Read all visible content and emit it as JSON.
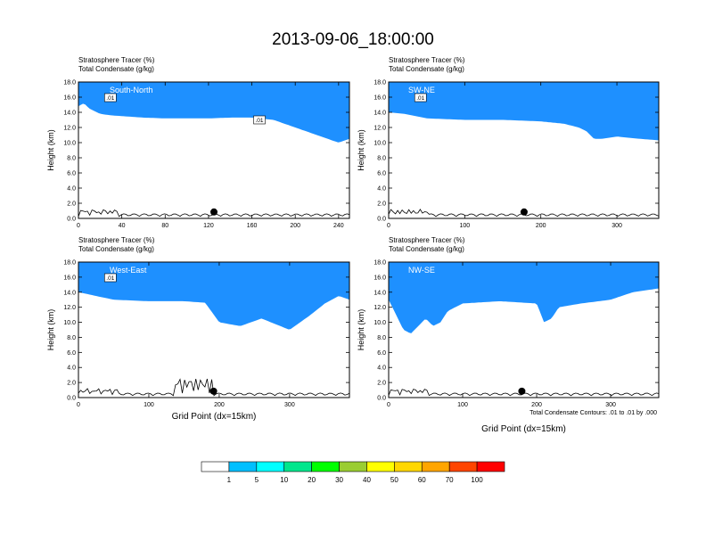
{
  "figure": {
    "title": "2013-09-06_18:00:00",
    "footnote": "Total Condensate Contours: .01 to .01 by .000",
    "colors": {
      "background": "#ffffff",
      "terrain": "#000000",
      "contour": "#000000",
      "marker": "#000000"
    }
  },
  "colorbar": {
    "levels": [
      "1",
      "5",
      "10",
      "20",
      "30",
      "40",
      "50",
      "60",
      "70",
      "100"
    ],
    "colors": [
      "#ffffff",
      "#1e90ff",
      "#00bfff",
      "#00ffff",
      "#00e68c",
      "#00ff00",
      "#9acd32",
      "#ffff00",
      "#ffd700",
      "#ffa500",
      "#ff4500",
      "#ff0000"
    ]
  },
  "chart_data": [
    {
      "id": "south-north",
      "type": "heatmap",
      "panel_label": "South-North",
      "title_line1": "Stratosphere Tracer   (%)",
      "title_line2": "Total Condensate   (g/kg)",
      "xlabel": "",
      "ylabel": "Height (km)",
      "xlim": [
        0,
        250
      ],
      "ylim": [
        0,
        18
      ],
      "xticks": [
        "0",
        "40",
        "80",
        "120",
        "160",
        "200",
        "240"
      ],
      "yticks": [
        "0.0",
        "2.0",
        "4.0",
        "6.0",
        "8.0",
        "10.0",
        "12.0",
        "14.0",
        "16.0",
        "18.0"
      ],
      "tropopause_x": [
        0,
        5,
        10,
        20,
        30,
        40,
        60,
        80,
        100,
        120,
        140,
        160,
        180,
        190,
        200,
        210,
        220,
        230,
        240,
        250
      ],
      "tropopause_y": [
        14.8,
        15.2,
        14.5,
        13.8,
        13.6,
        13.5,
        13.3,
        13.2,
        13.2,
        13.2,
        13.3,
        13.3,
        13.0,
        12.5,
        12.0,
        11.5,
        11.0,
        10.5,
        10.0,
        10.5
      ],
      "contour_labels": [
        ".01",
        ".01",
        ".01"
      ],
      "marker_x": 125
    },
    {
      "id": "sw-ne",
      "type": "heatmap",
      "panel_label": "SW-NE",
      "title_line1": "Stratosphere Tracer   (%)",
      "title_line2": "Total Condensate   (g/kg)",
      "xlabel": "",
      "ylabel": "Height (km)",
      "xlim": [
        0,
        355
      ],
      "ylim": [
        0,
        18
      ],
      "xticks": [
        "0",
        "100",
        "200",
        "300"
      ],
      "yticks": [
        "0.0",
        "2.0",
        "4.0",
        "6.0",
        "8.0",
        "10.0",
        "12.0",
        "14.0",
        "16.0",
        "18.0"
      ],
      "tropopause_x": [
        0,
        20,
        50,
        100,
        150,
        200,
        230,
        250,
        260,
        270,
        280,
        300,
        330,
        355
      ],
      "tropopause_y": [
        14.0,
        13.8,
        13.2,
        13.0,
        13.0,
        12.8,
        12.5,
        12.0,
        11.5,
        10.5,
        10.5,
        10.8,
        10.5,
        10.3
      ],
      "contour_labels": [
        ".01"
      ],
      "marker_x": 178
    },
    {
      "id": "west-east",
      "type": "heatmap",
      "panel_label": "West-East",
      "title_line1": "Stratosphere Tracer   (%)",
      "title_line2": "Total Condensate   (g/kg)",
      "xlabel": "Grid Point (dx=15km)",
      "ylabel": "Height (km)",
      "xlim": [
        0,
        385
      ],
      "ylim": [
        0,
        18
      ],
      "xticks": [
        "0",
        "100",
        "200",
        "300"
      ],
      "yticks": [
        "0.0",
        "2.0",
        "4.0",
        "6.0",
        "8.0",
        "10.0",
        "12.0",
        "14.0",
        "16.0",
        "18.0"
      ],
      "tropopause_x": [
        0,
        20,
        50,
        100,
        150,
        180,
        200,
        230,
        260,
        300,
        330,
        350,
        370,
        385
      ],
      "tropopause_y": [
        14.0,
        13.6,
        13.0,
        12.8,
        12.8,
        12.6,
        10.0,
        9.5,
        10.5,
        9.0,
        11.0,
        12.5,
        13.5,
        13.0
      ],
      "contour_labels": [
        ".01"
      ],
      "marker_x": 192
    },
    {
      "id": "nw-se",
      "type": "heatmap",
      "panel_label": "NW-SE",
      "title_line1": "Stratosphere Tracer   (%)",
      "title_line2": "Total Condensate   (g/kg)",
      "xlabel": "Grid Point (dx=15km)",
      "ylabel": "Height (km)",
      "xlim": [
        0,
        365
      ],
      "ylim": [
        0,
        18
      ],
      "xticks": [
        "0",
        "100",
        "200",
        "300"
      ],
      "yticks": [
        "0.0",
        "2.0",
        "4.0",
        "6.0",
        "8.0",
        "10.0",
        "12.0",
        "14.0",
        "16.0",
        "18.0"
      ],
      "tropopause_x": [
        0,
        10,
        20,
        30,
        40,
        50,
        60,
        70,
        80,
        100,
        150,
        200,
        210,
        220,
        230,
        260,
        300,
        330,
        365
      ],
      "tropopause_y": [
        13.0,
        11.0,
        9.0,
        8.5,
        9.5,
        10.5,
        9.5,
        10.0,
        11.5,
        12.5,
        12.8,
        12.5,
        10.0,
        10.5,
        12.0,
        12.5,
        13.0,
        14.0,
        14.5
      ],
      "contour_labels": [],
      "marker_x": 180
    }
  ]
}
